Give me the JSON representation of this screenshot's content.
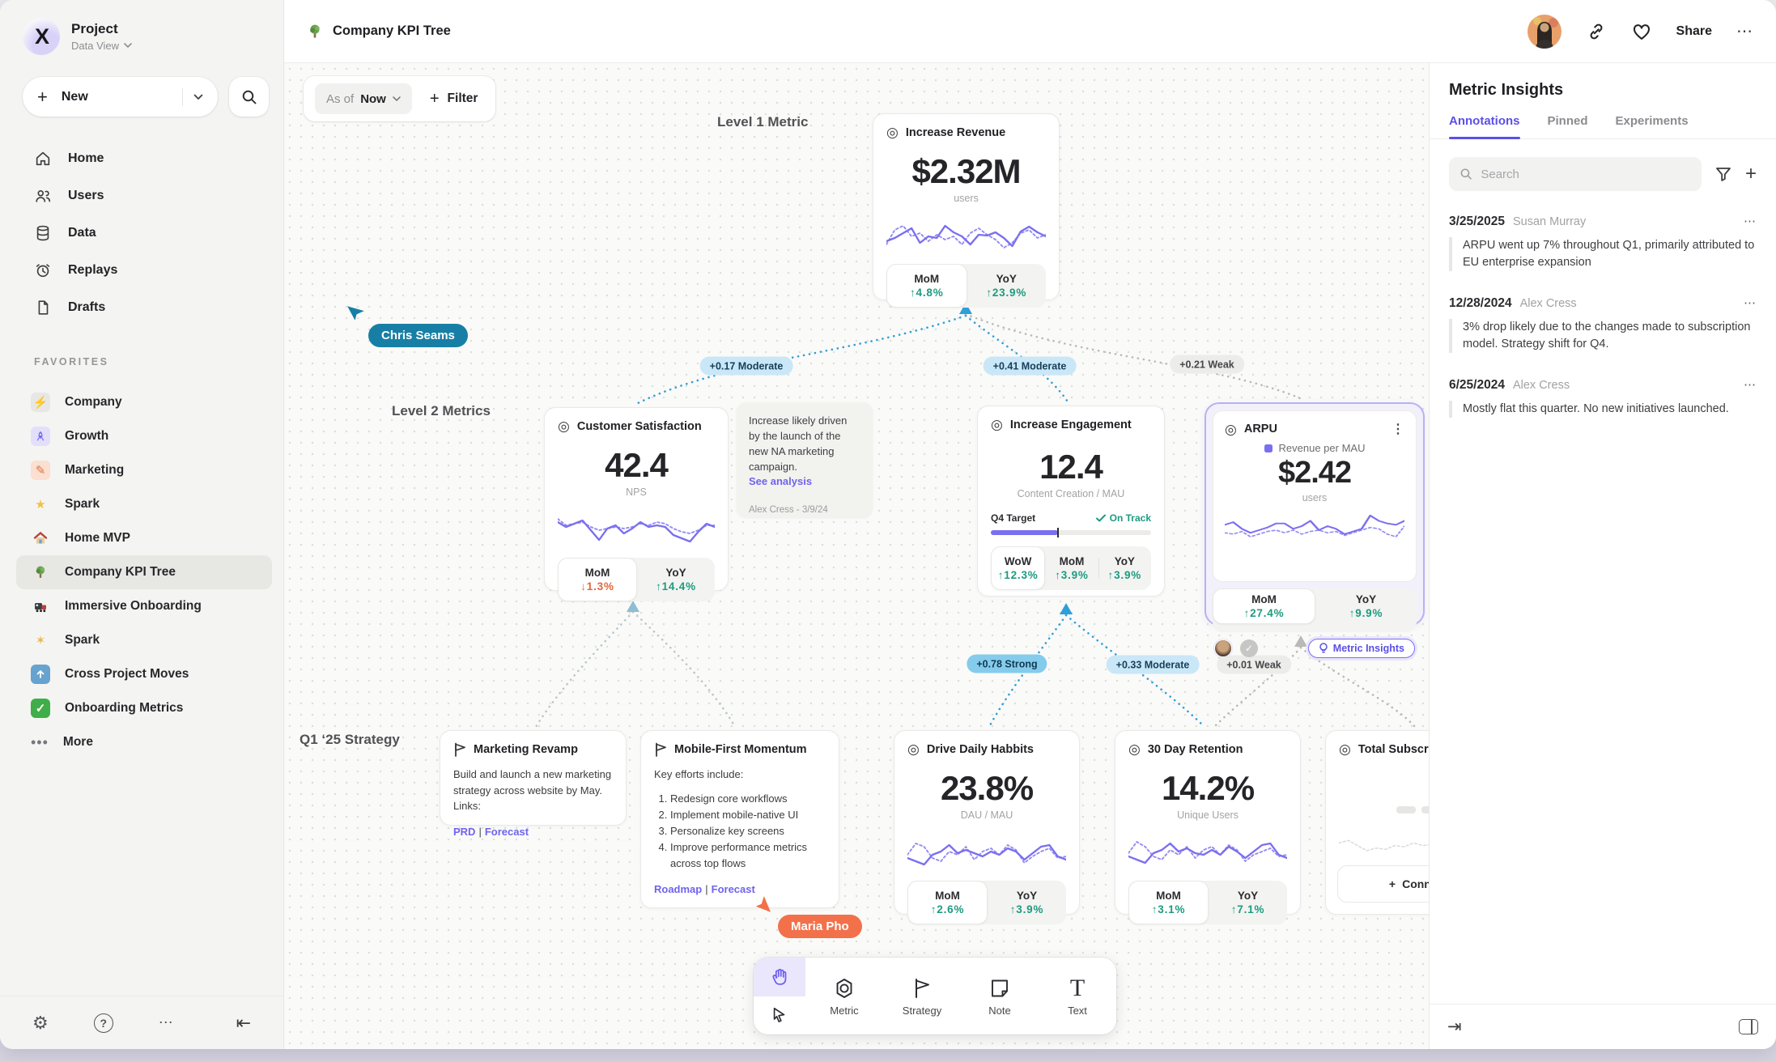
{
  "colors": {
    "accent": "#6f63ee",
    "up": "#1d9b80",
    "down": "#e2663c",
    "edge_blue": "#2f9fd9",
    "cursor_teal": "#177fa5",
    "cursor_orange": "#f2714b"
  },
  "sidebar": {
    "project": {
      "name": "Project",
      "view": "Data View"
    },
    "new_label": "New",
    "nav": [
      {
        "label": "Home"
      },
      {
        "label": "Users"
      },
      {
        "label": "Data"
      },
      {
        "label": "Replays"
      },
      {
        "label": "Drafts"
      }
    ],
    "favorites_title": "FAVORITES",
    "favorites": [
      {
        "label": "Company"
      },
      {
        "label": "Growth"
      },
      {
        "label": "Marketing"
      },
      {
        "label": "Spark"
      },
      {
        "label": "Home MVP"
      },
      {
        "label": "Company KPI Tree"
      },
      {
        "label": "Immersive Onboarding"
      },
      {
        "label": "Spark"
      },
      {
        "label": "Cross Project Moves"
      },
      {
        "label": "Onboarding Metrics"
      }
    ],
    "more_label": "More"
  },
  "topbar": {
    "title": "Company KPI Tree",
    "share_label": "Share"
  },
  "canvas": {
    "as_of_label": "As of",
    "as_of_value": "Now",
    "filter_label": "Filter",
    "level1_label": "Level 1 Metric",
    "level2_label": "Level 2 Metrics",
    "level3_label": "Q1 ‘25 Strategy",
    "labels": {
      "mom": "MoM",
      "yoy": "YoY",
      "wow": "WoW"
    },
    "edges": [
      {
        "label": "+0.17 Moderate"
      },
      {
        "label": "+0.41 Moderate"
      },
      {
        "label": "+0.21 Weak"
      },
      {
        "label": "+0.78 Strong"
      },
      {
        "label": "+0.33 Moderate"
      },
      {
        "label": "+0.01 Weak"
      }
    ],
    "cursors": [
      {
        "name": "Chris Seams"
      },
      {
        "name": "Maria Pho"
      }
    ],
    "cards": {
      "revenue": {
        "title": "Increase Revenue",
        "value": "$2.32M",
        "unit": "users",
        "mom": "↑4.8%",
        "yoy": "↑23.9%",
        "spark": {
          "solid": [
            14,
            18,
            24,
            30,
            12,
            20,
            18,
            33,
            25,
            20,
            10,
            22,
            21,
            25,
            18,
            8,
            26,
            32,
            25,
            20
          ],
          "dotted": [
            10,
            28,
            33,
            20,
            24,
            14,
            22,
            16,
            20,
            10,
            24,
            30,
            22,
            16,
            6,
            12,
            24,
            28,
            18,
            22
          ]
        }
      },
      "cs": {
        "title": "Customer Satisfaction",
        "value": "42.4",
        "unit": "NPS",
        "mom": "↓1.3%",
        "yoy": "↑14.4%",
        "spark": {
          "solid": [
            30,
            24,
            28,
            32,
            20,
            8,
            22,
            26,
            16,
            22,
            30,
            24,
            26,
            24,
            14,
            10,
            6,
            18,
            28,
            24
          ],
          "dotted": [
            34,
            26,
            28,
            30,
            24,
            20,
            22,
            24,
            22,
            24,
            28,
            26,
            30,
            28,
            22,
            18,
            16,
            20,
            26,
            26
          ]
        }
      },
      "note": {
        "body": "Increase likely driven by the launch of the new NA marketing campaign.",
        "link": "See analysis",
        "byline": "Alex Cress - 3/9/24"
      },
      "engagement": {
        "title": "Increase Engagement",
        "value": "12.4",
        "unit": "Content Creation / MAU",
        "target_label": "Q4 Target",
        "status": "On Track",
        "progress": 42,
        "wow": "↑12.3%",
        "mom": "↑3.9%",
        "yoy": "↑3.9%"
      },
      "arpu": {
        "title": "ARPU",
        "legend": "Revenue per MAU",
        "value": "$2.42",
        "unit": "users",
        "mom": "↑27.4%",
        "yoy": "↑9.9%",
        "badge": "Metric Insights",
        "spark": {
          "solid": [
            26,
            30,
            20,
            14,
            18,
            22,
            28,
            28,
            20,
            24,
            32,
            18,
            24,
            20,
            12,
            16,
            20,
            40,
            32,
            28,
            26,
            32
          ],
          "dotted": [
            14,
            12,
            16,
            8,
            12,
            16,
            18,
            14,
            18,
            12,
            16,
            18,
            14,
            16,
            10,
            14,
            18,
            22,
            20,
            12,
            8,
            24
          ]
        }
      },
      "marketing": {
        "title": "Marketing Revamp",
        "body": "Build and launch a new marketing strategy across website by May. Links:",
        "link1": "PRD",
        "sep": "|",
        "link2": "Forecast"
      },
      "mobile": {
        "title": "Mobile-First Momentum",
        "intro": "Key efforts include:",
        "items": [
          "Redesign core workflows",
          "Implement mobile-native UI",
          "Personalize key screens",
          "Improve performance metrics across top flows"
        ],
        "link1": "Roadmap",
        "sep": "|",
        "link2": "Forecast"
      },
      "drive": {
        "title": "Drive Daily Habbits",
        "value": "23.8%",
        "unit": "DAU / MAU",
        "mom": "↑2.6%",
        "yoy": "↑3.9%",
        "spark": {
          "solid": [
            14,
            10,
            6,
            18,
            22,
            30,
            20,
            24,
            20,
            16,
            22,
            18,
            26,
            22,
            12,
            20,
            28,
            30,
            16,
            12
          ],
          "dotted": [
            18,
            32,
            28,
            14,
            10,
            22,
            18,
            28,
            12,
            22,
            26,
            18,
            30,
            24,
            8,
            16,
            22,
            26,
            14,
            16
          ]
        }
      },
      "retention": {
        "title": "30 Day Retention",
        "value": "14.2%",
        "unit": "Unique Users",
        "mom": "↑3.1%",
        "yoy": "↑7.1%",
        "spark": {
          "solid": [
            16,
            12,
            8,
            20,
            24,
            32,
            22,
            26,
            20,
            18,
            24,
            18,
            28,
            22,
            14,
            22,
            30,
            32,
            18,
            14
          ],
          "dotted": [
            20,
            34,
            28,
            16,
            12,
            24,
            18,
            28,
            14,
            24,
            28,
            18,
            30,
            24,
            10,
            18,
            22,
            26,
            16,
            18
          ]
        }
      },
      "subs": {
        "title": "Total Subscriptions",
        "connect_label": "Connect",
        "spark": {
          "dotted": [
            26,
            30,
            22,
            14,
            18,
            16,
            22,
            20,
            26,
            22,
            24,
            28,
            22,
            26,
            30,
            24,
            28,
            26
          ]
        }
      }
    },
    "toolbar": {
      "tools": [
        {
          "label": "Metric"
        },
        {
          "label": "Strategy"
        },
        {
          "label": "Note"
        },
        {
          "label": "Text"
        }
      ]
    }
  },
  "insights": {
    "title": "Metric Insights",
    "tabs": [
      {
        "label": "Annotations"
      },
      {
        "label": "Pinned"
      },
      {
        "label": "Experiments"
      }
    ],
    "search_placeholder": "Search",
    "annotations": [
      {
        "date": "3/25/2025",
        "author": "Susan Murray",
        "text": "ARPU went up 7% throughout Q1, primarily attributed to EU enterprise expansion"
      },
      {
        "date": "12/28/2024",
        "author": "Alex Cress",
        "text": "3% drop likely due to the changes made to subscription model. Strategy shift for Q4."
      },
      {
        "date": "6/25/2024",
        "author": "Alex Cress",
        "text": "Mostly flat this quarter. No new initiatives launched."
      }
    ]
  }
}
